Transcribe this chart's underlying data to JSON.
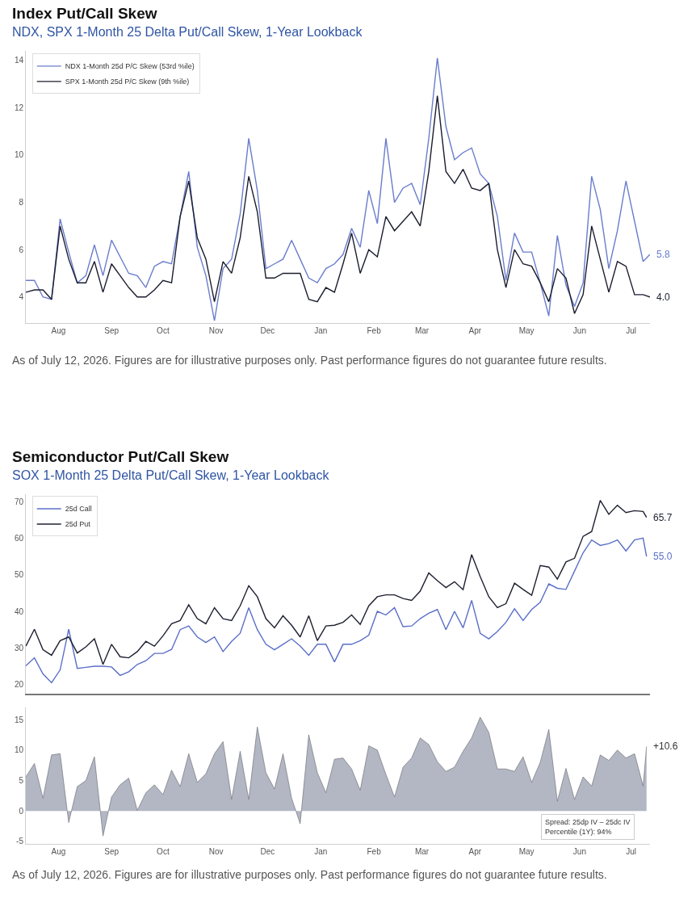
{
  "chart_data": [
    {
      "type": "line",
      "title": "Index Put/Call Skew",
      "subtitle": "NDX, SPX 1-Month 25 Delta Put/Call Skew, 1-Year Lookback",
      "legend": "top left",
      "grid": false,
      "x": [
        "2025-07-13",
        "2025-07-18",
        "2025-07-23",
        "2025-07-28",
        "2025-08-02",
        "2025-08-07",
        "2025-08-12",
        "2025-08-17",
        "2025-08-22",
        "2025-08-27",
        "2025-09-01",
        "2025-09-06",
        "2025-09-11",
        "2025-09-16",
        "2025-09-21",
        "2025-09-26",
        "2025-10-01",
        "2025-10-06",
        "2025-10-11",
        "2025-10-16",
        "2025-10-21",
        "2025-10-26",
        "2025-10-31",
        "2025-11-05",
        "2025-11-10",
        "2025-11-15",
        "2025-11-20",
        "2025-11-25",
        "2025-11-30",
        "2025-12-05",
        "2025-12-10",
        "2025-12-15",
        "2025-12-20",
        "2025-12-25",
        "2025-12-30",
        "2026-01-04",
        "2026-01-09",
        "2026-01-14",
        "2026-01-19",
        "2026-01-24",
        "2026-01-29",
        "2026-02-03",
        "2026-02-08",
        "2026-02-13",
        "2026-02-18",
        "2026-02-23",
        "2026-02-28",
        "2026-03-05",
        "2026-03-10",
        "2026-03-15",
        "2026-03-20",
        "2026-03-25",
        "2026-03-30",
        "2026-04-04",
        "2026-04-09",
        "2026-04-14",
        "2026-04-19",
        "2026-04-24",
        "2026-04-29",
        "2026-05-04",
        "2026-05-09",
        "2026-05-14",
        "2026-05-19",
        "2026-05-24",
        "2026-05-29",
        "2026-06-03",
        "2026-06-08",
        "2026-06-13",
        "2026-06-18",
        "2026-06-23",
        "2026-06-28",
        "2026-07-03",
        "2026-07-08",
        "2026-07-12"
      ],
      "series": [
        {
          "name": "NDX 1-Month 25d P/C Skew (53rd %ile)",
          "color": "#6a7dcc",
          "values": [
            4.7,
            4.7,
            4.0,
            3.9,
            7.3,
            5.9,
            4.6,
            4.9,
            6.2,
            4.9,
            6.4,
            5.7,
            5.0,
            4.9,
            4.4,
            5.3,
            5.5,
            5.4,
            7.4,
            9.3,
            6.1,
            4.9,
            3.0,
            5.2,
            5.6,
            7.5,
            10.7,
            8.5,
            5.2,
            5.4,
            5.6,
            6.4,
            5.6,
            4.8,
            4.6,
            5.2,
            5.4,
            5.8,
            6.9,
            6.1,
            8.5,
            7.1,
            10.7,
            8.0,
            8.6,
            8.8,
            7.9,
            10.7,
            14.1,
            11.2,
            9.8,
            10.1,
            10.3,
            9.2,
            8.8,
            7.4,
            4.7,
            6.7,
            5.9,
            5.9,
            4.6,
            3.2,
            6.6,
            4.5,
            3.6,
            4.6,
            9.1,
            7.7,
            5.2,
            6.8,
            8.9,
            7.2,
            5.5,
            5.8
          ]
        },
        {
          "name": "SPX 1-Month 25d P/C Skew (9th %ile)",
          "color": "#1b1d2e",
          "values": [
            4.2,
            4.3,
            4.3,
            3.9,
            7.0,
            5.6,
            4.6,
            4.6,
            5.5,
            4.2,
            5.4,
            4.9,
            4.4,
            4.0,
            4.0,
            4.3,
            4.7,
            4.6,
            7.4,
            8.9,
            6.5,
            5.6,
            3.8,
            5.5,
            5.0,
            6.5,
            9.1,
            7.6,
            4.8,
            4.8,
            5.0,
            5.0,
            5.0,
            3.9,
            3.8,
            4.4,
            4.2,
            5.4,
            6.7,
            5.0,
            6.0,
            5.7,
            7.4,
            6.8,
            7.2,
            7.6,
            7.0,
            9.3,
            12.5,
            9.3,
            8.8,
            9.4,
            8.6,
            8.5,
            8.8,
            6.0,
            4.4,
            6.0,
            5.4,
            5.3,
            4.6,
            3.8,
            5.2,
            4.8,
            3.3,
            4.1,
            7.0,
            5.6,
            4.2,
            5.5,
            5.3,
            4.1,
            4.1,
            4.0
          ]
        }
      ],
      "xlim": [
        "2025-07-13",
        "2026-07-12"
      ],
      "xticks": [
        {
          "value": "2025-08-01",
          "label": "Aug"
        },
        {
          "value": "2025-09-01",
          "label": "Sep"
        },
        {
          "value": "2025-10-01",
          "label": "Oct"
        },
        {
          "value": "2025-11-01",
          "label": "Nov"
        },
        {
          "value": "2025-12-01",
          "label": "Dec"
        },
        {
          "value": "2026-01-01",
          "label": "Jan"
        },
        {
          "value": "2026-02-01",
          "label": "Feb"
        },
        {
          "value": "2026-03-01",
          "label": "Mar"
        },
        {
          "value": "2026-04-01",
          "label": "Apr"
        },
        {
          "value": "2026-05-01",
          "label": "May"
        },
        {
          "value": "2026-06-01",
          "label": "Jun"
        },
        {
          "value": "2026-07-01",
          "label": "Jul"
        }
      ],
      "ylim": [
        2.9,
        14.4
      ],
      "yticks": [
        4,
        6,
        8,
        10,
        12,
        14
      ],
      "annotations": [
        {
          "text": "5.8",
          "x": "2026-07-12",
          "y": 5.8
        },
        {
          "text": "4.0",
          "x": "2026-07-12",
          "y": 4.0
        },
        "As of July 12, 2026. Figures are for illustrative purposes only. Past performance figures do not guarantee future results."
      ]
    },
    {
      "type": "line",
      "title": "Semiconductor Put/Call Skew",
      "subtitle": "SOX 1-Month 25 Delta Put/Call Skew, 1-Year Lookback",
      "legend": "top left",
      "grid": false,
      "tick_labels": "y",
      "x": [
        "2025-07-13",
        "2025-07-18",
        "2025-07-23",
        "2025-07-28",
        "2025-08-02",
        "2025-08-07",
        "2025-08-12",
        "2025-08-17",
        "2025-08-22",
        "2025-08-27",
        "2025-09-01",
        "2025-09-06",
        "2025-09-11",
        "2025-09-16",
        "2025-09-21",
        "2025-09-26",
        "2025-10-01",
        "2025-10-06",
        "2025-10-11",
        "2025-10-16",
        "2025-10-21",
        "2025-10-26",
        "2025-10-31",
        "2025-11-05",
        "2025-11-10",
        "2025-11-15",
        "2025-11-20",
        "2025-11-25",
        "2025-11-30",
        "2025-12-05",
        "2025-12-10",
        "2025-12-15",
        "2025-12-20",
        "2025-12-25",
        "2025-12-30",
        "2026-01-04",
        "2026-01-09",
        "2026-01-14",
        "2026-01-19",
        "2026-01-24",
        "2026-01-29",
        "2026-02-03",
        "2026-02-08",
        "2026-02-13",
        "2026-02-18",
        "2026-02-23",
        "2026-02-28",
        "2026-03-05",
        "2026-03-10",
        "2026-03-15",
        "2026-03-20",
        "2026-03-25",
        "2026-03-30",
        "2026-04-04",
        "2026-04-09",
        "2026-04-14",
        "2026-04-19",
        "2026-04-24",
        "2026-04-29",
        "2026-05-04",
        "2026-05-09",
        "2026-05-14",
        "2026-05-19",
        "2026-05-24",
        "2026-05-29",
        "2026-06-03",
        "2026-06-08",
        "2026-06-13",
        "2026-06-18",
        "2026-06-23",
        "2026-06-28",
        "2026-07-03",
        "2026-07-08",
        "2026-07-10"
      ],
      "series": [
        {
          "name": "25d Call",
          "color": "#5b6fc8",
          "values": [
            25.1,
            27.3,
            22.9,
            20.5,
            24.0,
            35.1,
            24.4,
            24.7,
            25.0,
            25.0,
            24.8,
            22.5,
            23.5,
            25.5,
            26.5,
            28.5,
            28.5,
            29.6,
            35.0,
            36.0,
            33.0,
            31.5,
            33.0,
            29.0,
            31.8,
            34.0,
            41.0,
            35.0,
            31.0,
            29.5,
            31.0,
            32.5,
            30.5,
            28.0,
            31.0,
            31.0,
            26.2,
            31.0,
            31.0,
            32.0,
            33.5,
            40.0,
            39.0,
            41.0,
            35.8,
            36.0,
            38.0,
            39.5,
            40.5,
            35.0,
            40.0,
            35.5,
            43.0,
            34.0,
            32.5,
            34.5,
            37.0,
            40.7,
            37.5,
            40.5,
            42.5,
            47.5,
            46.3,
            46.0,
            51.0,
            56.0,
            59.5,
            58.0,
            58.5,
            59.5,
            56.5,
            59.5,
            60.0,
            55.0
          ]
        },
        {
          "name": "25d Put",
          "color": "#1e2030",
          "values": [
            30.5,
            35.1,
            29.5,
            28.0,
            32.0,
            33.0,
            28.6,
            30.3,
            32.5,
            25.5,
            31.0,
            27.6,
            27.3,
            29.0,
            31.8,
            30.5,
            33.3,
            36.6,
            37.5,
            41.8,
            38.0,
            36.6,
            41.0,
            38.0,
            37.5,
            41.5,
            47.0,
            44.0,
            38.0,
            35.5,
            38.8,
            36.2,
            33.0,
            38.8,
            32.0,
            36.0,
            36.2,
            37.0,
            39.0,
            36.4,
            41.5,
            44.0,
            44.5,
            44.5,
            43.5,
            43.0,
            45.5,
            50.5,
            48.4,
            46.5,
            48.1,
            45.9,
            55.5,
            49.5,
            44.0,
            41.0,
            42.1,
            47.7,
            46.0,
            44.4,
            52.5,
            52.1,
            48.8,
            53.5,
            54.5,
            60.5,
            61.8,
            70.3,
            66.5,
            69.0,
            67.0,
            67.5,
            67.3,
            65.7
          ]
        }
      ],
      "xlim": [
        "2025-07-13",
        "2026-07-12"
      ],
      "ylim": [
        17.5,
        72
      ],
      "yticks": [
        20,
        30,
        40,
        50,
        60,
        70
      ],
      "annotations": [
        {
          "text": "65.7",
          "x": "2026-07-10",
          "y": 65.7
        },
        {
          "text": "55.0",
          "x": "2026-07-10",
          "y": 55.0
        }
      ]
    },
    {
      "type": "area",
      "grid": false,
      "x": [
        "2025-07-13",
        "2025-07-18",
        "2025-07-23",
        "2025-07-28",
        "2025-08-02",
        "2025-08-07",
        "2025-08-12",
        "2025-08-17",
        "2025-08-22",
        "2025-08-27",
        "2025-09-01",
        "2025-09-06",
        "2025-09-11",
        "2025-09-16",
        "2025-09-21",
        "2025-09-26",
        "2025-10-01",
        "2025-10-06",
        "2025-10-11",
        "2025-10-16",
        "2025-10-21",
        "2025-10-26",
        "2025-10-31",
        "2025-11-05",
        "2025-11-10",
        "2025-11-15",
        "2025-11-20",
        "2025-11-25",
        "2025-11-30",
        "2025-12-05",
        "2025-12-10",
        "2025-12-15",
        "2025-12-20",
        "2025-12-25",
        "2025-12-30",
        "2026-01-04",
        "2026-01-09",
        "2026-01-14",
        "2026-01-19",
        "2026-01-24",
        "2026-01-29",
        "2026-02-03",
        "2026-02-08",
        "2026-02-13",
        "2026-02-18",
        "2026-02-23",
        "2026-02-28",
        "2026-03-05",
        "2026-03-10",
        "2026-03-15",
        "2026-03-20",
        "2026-03-25",
        "2026-03-30",
        "2026-04-04",
        "2026-04-09",
        "2026-04-14",
        "2026-04-19",
        "2026-04-24",
        "2026-04-29",
        "2026-05-04",
        "2026-05-09",
        "2026-05-14",
        "2026-05-19",
        "2026-05-24",
        "2026-05-29",
        "2026-06-03",
        "2026-06-08",
        "2026-06-13",
        "2026-06-18",
        "2026-06-23",
        "2026-06-28",
        "2026-07-03",
        "2026-07-08",
        "2026-07-10"
      ],
      "series": [
        {
          "color": "#b3b6c3",
          "values": [
            5.6,
            7.8,
            2.1,
            9.2,
            9.4,
            -1.9,
            4.0,
            5.0,
            8.9,
            -4.1,
            2.3,
            4.3,
            5.4,
            0.1,
            3.0,
            4.3,
            2.7,
            6.7,
            4.0,
            9.4,
            4.7,
            6.1,
            9.4,
            11.4,
            1.9,
            9.8,
            1.9,
            13.8,
            6.3,
            3.6,
            9.4,
            2.1,
            -2.1,
            12.5,
            6.3,
            3.0,
            8.5,
            8.7,
            6.9,
            3.4,
            10.7,
            10.0,
            6.0,
            2.3,
            7.2,
            8.7,
            12.0,
            10.9,
            8.1,
            6.5,
            7.2,
            9.8,
            12.0,
            15.4,
            12.9,
            6.9,
            6.9,
            6.5,
            8.9,
            4.7,
            8.0,
            13.4,
            1.6,
            7.0,
            1.9,
            5.6,
            4.1,
            9.2,
            8.3,
            10.0,
            8.7,
            9.4,
            4.1,
            10.6
          ]
        }
      ],
      "xlim": [
        "2025-07-13",
        "2026-07-12"
      ],
      "xticks": [
        {
          "value": "2025-08-01",
          "label": "Aug"
        },
        {
          "value": "2025-09-01",
          "label": "Sep"
        },
        {
          "value": "2025-10-01",
          "label": "Oct"
        },
        {
          "value": "2025-11-01",
          "label": "Nov"
        },
        {
          "value": "2025-12-01",
          "label": "Dec"
        },
        {
          "value": "2026-01-01",
          "label": "Jan"
        },
        {
          "value": "2026-02-01",
          "label": "Feb"
        },
        {
          "value": "2026-03-01",
          "label": "Mar"
        },
        {
          "value": "2026-04-01",
          "label": "Apr"
        },
        {
          "value": "2026-05-01",
          "label": "May"
        },
        {
          "value": "2026-06-01",
          "label": "Jun"
        },
        {
          "value": "2026-07-01",
          "label": "Jul"
        }
      ],
      "ylim": [
        -5.4,
        17
      ],
      "yticks": [
        -5,
        0,
        5,
        10,
        15
      ],
      "annotations": [
        {
          "text": "+10.6",
          "x": "2026-07-10",
          "y": 10.6
        },
        "Spread: 25dp IV – 25dc IV",
        "Percentile (1Y): 94%",
        "As of July 12, 2026. Figures are for illustrative purposes only. Past performance figures do not guarantee future results."
      ]
    }
  ]
}
